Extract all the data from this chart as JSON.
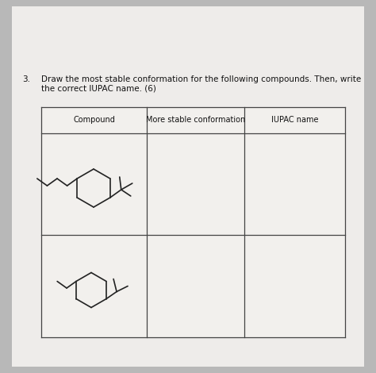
{
  "title_num": "3.",
  "title_text": "Draw the most stable conformation for the following compounds. Then, write\nthe correct IUPAC name. (6)",
  "col_headers": [
    "Compound",
    "More stable conformation",
    "IUPAC name"
  ],
  "bg_color": "#b8b8b8",
  "paper_color": "#eeecea",
  "table_bg": "#f2f0ed",
  "line_color": "#444444",
  "text_color": "#111111",
  "title_fontsize": 7.5,
  "header_fontsize": 7.0,
  "fig_width": 4.74,
  "fig_height": 4.7,
  "dpi": 100
}
